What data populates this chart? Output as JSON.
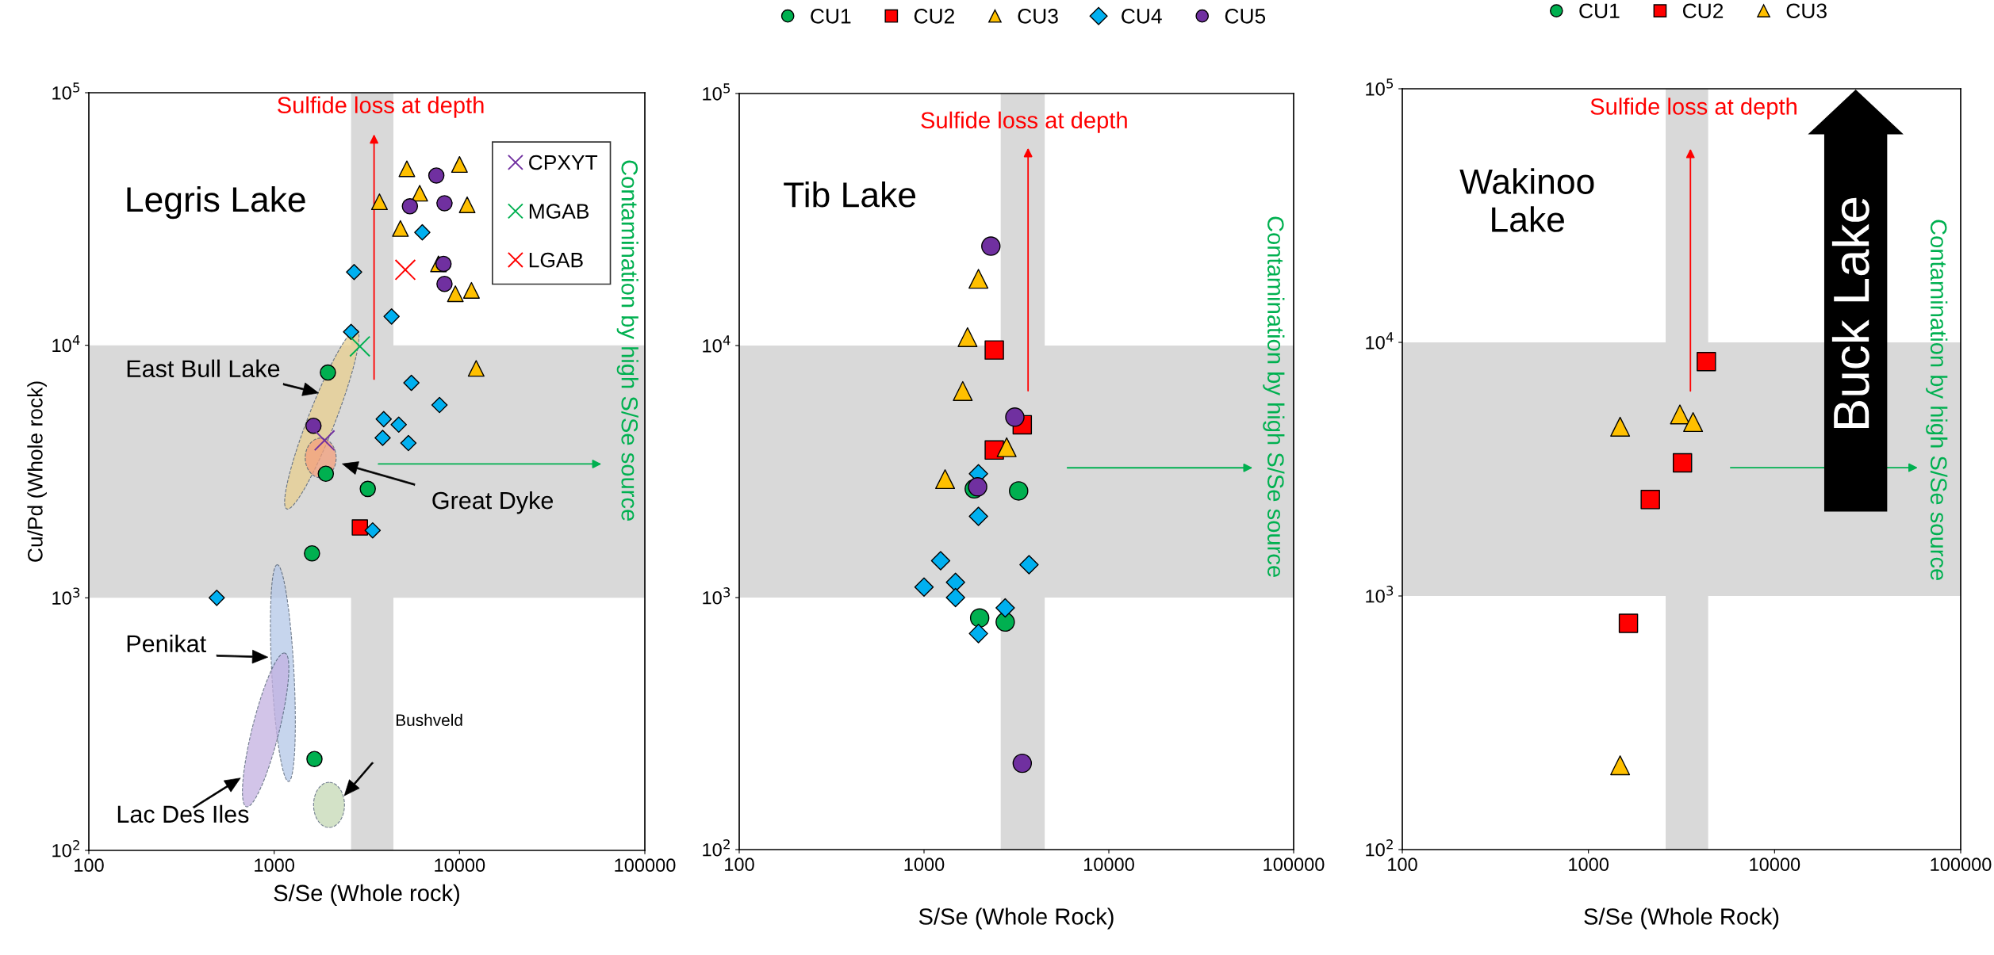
{
  "chart_data": [
    {
      "type": "scatter",
      "xlabel": "S/Se (Whole rock)",
      "ylabel": "Cu/Pd (Whole rock)",
      "log": "xy",
      "xlim": [
        100,
        100000
      ],
      "ylim": [
        100,
        100000
      ],
      "xticks": [
        100,
        1000,
        10000,
        100000
      ],
      "yticks": [
        {
          "value": 100,
          "label": "10$^{2}$"
        },
        {
          "value": 1000,
          "label": "10$^{3}$"
        },
        {
          "value": 10000,
          "label": "10$^{4}$"
        },
        {
          "value": 100000,
          "label": "10$^{5}$"
        }
      ],
      "legend": "top right",
      "bands": [
        {
          "axis": "y",
          "from": 1000,
          "to": 10000,
          "color": "#d9d9d9"
        },
        {
          "axis": "x",
          "from": 2600,
          "to": 4400,
          "color": "#d9d9d9"
        }
      ],
      "series": [
        {
          "color": "#00b050",
          "marker": "circle",
          "x": [
            1950,
            1900,
            3200,
            1600,
            1650
          ],
          "values": [
            7800,
            3100,
            2700,
            1500,
            230
          ]
        },
        {
          "color": "#ff0000",
          "marker": "square",
          "x": [
            2900
          ],
          "values": [
            1900
          ]
        },
        {
          "color": "#ffc000",
          "marker": "triangle",
          "x": [
            5200,
            10000,
            6100,
            3700,
            11000,
            4800,
            7700,
            9500,
            11600,
            12300
          ],
          "values": [
            50000,
            52000,
            40000,
            37000,
            36000,
            29000,
            21000,
            16000,
            16500,
            8100
          ]
        },
        {
          "color": "#00b0f0",
          "marker": "diamond",
          "x": [
            6300,
            2700,
            4300,
            2600,
            5500,
            7800,
            3900,
            4700,
            3850,
            5300,
            3400,
            490
          ],
          "values": [
            28000,
            19500,
            13000,
            11300,
            7100,
            5800,
            5100,
            4850,
            4300,
            4100,
            1850,
            1000
          ]
        },
        {
          "color": "#7030a0",
          "marker": "circle",
          "x": [
            7500,
            5400,
            8300,
            8200,
            8300,
            1630
          ],
          "values": [
            47000,
            35500,
            36500,
            21000,
            17500,
            4800
          ]
        },
        {
          "name": "CPXYT",
          "color": "#7030a0",
          "marker": "cross",
          "x": [
            1870
          ],
          "values": [
            4200
          ]
        },
        {
          "name": "MGAB",
          "color": "#00b050",
          "marker": "cross",
          "x": [
            2900
          ],
          "values": [
            9900
          ]
        },
        {
          "name": "LGAB",
          "color": "#ff0000",
          "marker": "cross",
          "x": [
            5100
          ],
          "values": [
            19900
          ]
        }
      ],
      "annotations": [
        "Legris Lake",
        "Sulfide loss at depth",
        "Contamination by high S/Se source",
        "East Bull Lake",
        "Great Dyke",
        "Penikat",
        "Lac Des Iles",
        "Bushveld"
      ]
    },
    {
      "type": "scatter",
      "xlabel": "S/Se (Whole Rock)",
      "log": "xy",
      "xlim": [
        100,
        100000
      ],
      "ylim": [
        100,
        100000
      ],
      "xticks": [
        100,
        1000,
        10000,
        100000
      ],
      "yticks": [
        {
          "value": 100,
          "label": "10$^{2}$"
        },
        {
          "value": 1000,
          "label": "10$^{3}$"
        },
        {
          "value": 10000,
          "label": "10$^{4}$"
        },
        {
          "value": 100000,
          "label": "10$^{5}$"
        }
      ],
      "legend": "top",
      "bands": [
        {
          "axis": "y",
          "from": 1000,
          "to": 10000,
          "color": "#d9d9d9"
        },
        {
          "axis": "x",
          "from": 2600,
          "to": 4500,
          "color": "#d9d9d9"
        }
      ],
      "series": [
        {
          "name": "CU1",
          "color": "#00b050",
          "marker": "circle",
          "x": [
            1870,
            3250,
            2000,
            2750
          ],
          "values": [
            2700,
            2650,
            830,
            800
          ]
        },
        {
          "name": "CU2",
          "color": "#ff0000",
          "marker": "square",
          "x": [
            2400,
            3400,
            2400
          ],
          "values": [
            9600,
            4850,
            3850
          ]
        },
        {
          "name": "CU3",
          "color": "#ffc000",
          "marker": "triangle",
          "x": [
            1970,
            1720,
            1620,
            2800,
            1300
          ],
          "values": [
            18400,
            10800,
            6600,
            3950,
            2950
          ]
        },
        {
          "name": "CU4",
          "color": "#00b0f0",
          "marker": "diamond",
          "x": [
            1970,
            1970,
            1230,
            3700,
            1480,
            1000,
            1480,
            2750,
            1970
          ],
          "values": [
            3100,
            2100,
            1400,
            1350,
            1150,
            1100,
            1000,
            910,
            720
          ]
        },
        {
          "name": "CU5",
          "color": "#7030a0",
          "marker": "circle",
          "x": [
            2300,
            3100,
            1950,
            3400
          ],
          "values": [
            24800,
            5200,
            2750,
            220
          ]
        }
      ],
      "annotations": [
        "Tib Lake",
        "Sulfide loss at depth",
        "Contamination by high S/Se source"
      ]
    },
    {
      "type": "scatter",
      "xlabel": "S/Se (Whole Rock)",
      "log": "xy",
      "xlim": [
        100,
        100000
      ],
      "ylim": [
        100,
        100000
      ],
      "xticks": [
        100,
        1000,
        10000,
        100000
      ],
      "yticks": [
        {
          "value": 100,
          "label": "10$^{2}$"
        },
        {
          "value": 1000,
          "label": "10$^{3}$"
        },
        {
          "value": 10000,
          "label": "10$^{4}$"
        },
        {
          "value": 100000,
          "label": "10$^{5}$"
        }
      ],
      "legend": "top",
      "bands": [
        {
          "axis": "y",
          "from": 1000,
          "to": 10000,
          "color": "#d9d9d9"
        },
        {
          "axis": "x",
          "from": 2600,
          "to": 4400,
          "color": "#d9d9d9"
        }
      ],
      "series": [
        {
          "name": "CU1",
          "color": "#00b050",
          "marker": "circle"
        },
        {
          "name": "CU2",
          "color": "#ff0000",
          "marker": "square",
          "x": [
            4300,
            3200,
            2150,
            1640
          ],
          "values": [
            8400,
            3350,
            2400,
            780
          ]
        },
        {
          "name": "CU3",
          "color": "#ffc000",
          "marker": "triangle",
          "x": [
            1480,
            3100,
            3650,
            1480
          ],
          "values": [
            4650,
            5200,
            4850,
            215
          ]
        }
      ],
      "annotations": [
        "Wakinoo\nLake",
        "Sulfide loss at depth",
        "Contamination by high S/Se source",
        "Buck Lake"
      ]
    }
  ]
}
